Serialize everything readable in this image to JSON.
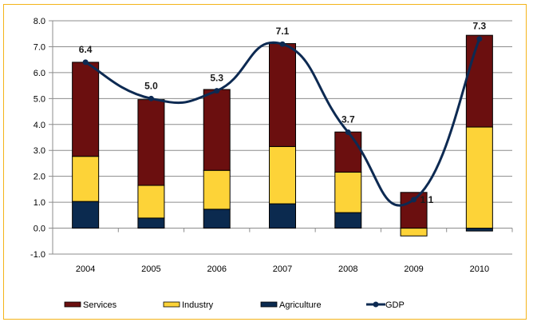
{
  "chart_data": {
    "type": "bar",
    "stacked": true,
    "title": "",
    "xlabel": "",
    "ylabel": "",
    "categories": [
      "2004",
      "2005",
      "2006",
      "2007",
      "2008",
      "2009",
      "2010"
    ],
    "ylim": [
      -1.0,
      8.0
    ],
    "yticks": [
      "8.0",
      "7.0",
      "6.0",
      "5.0",
      "4.0",
      "3.0",
      "2.0",
      "1.0",
      "0.0",
      "-1.0"
    ],
    "ytick_values": [
      8,
      7,
      6,
      5,
      4,
      3,
      2,
      1,
      0,
      -1
    ],
    "grid": true,
    "legend_position": "bottom",
    "series": [
      {
        "name": "Agriculture",
        "kind": "bar",
        "color": "#0b2a4f",
        "values": [
          1.03,
          0.39,
          0.73,
          0.94,
          0.6,
          0.0,
          -0.11
        ]
      },
      {
        "name": "Industry",
        "kind": "bar",
        "color": "#fdd338",
        "values": [
          1.74,
          1.26,
          1.5,
          2.21,
          1.56,
          -0.3,
          3.9
        ]
      },
      {
        "name": "Services",
        "kind": "bar",
        "color": "#6b0f0f",
        "values": [
          3.63,
          3.31,
          3.12,
          3.97,
          1.55,
          1.38,
          3.54
        ]
      },
      {
        "name": "GDP",
        "kind": "line",
        "color": "#0d2a52",
        "values": [
          6.4,
          5.0,
          5.3,
          7.1,
          3.7,
          1.1,
          7.3
        ],
        "labels": [
          "6.4",
          "5.0",
          "5.3",
          "7.1",
          "3.7",
          "1.1",
          "7.3"
        ]
      }
    ],
    "legend_order": [
      "Services",
      "Industry",
      "Agriculture",
      "GDP"
    ]
  }
}
